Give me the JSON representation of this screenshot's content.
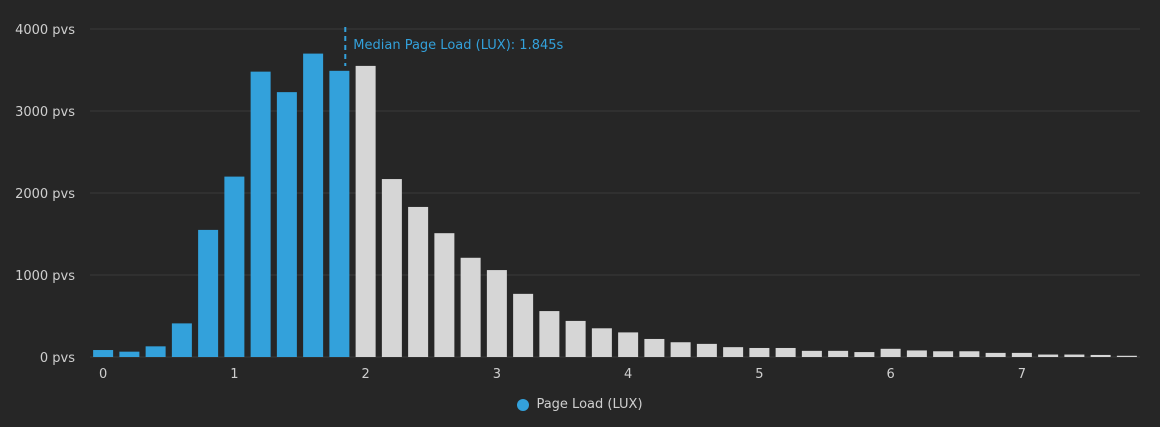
{
  "chart_data": {
    "type": "bar",
    "x": [
      0.0,
      0.2,
      0.4,
      0.6,
      0.8,
      1.0,
      1.2,
      1.4,
      1.6,
      1.8,
      2.0,
      2.2,
      2.4,
      2.6,
      2.8,
      3.0,
      3.2,
      3.4,
      3.6,
      3.8,
      4.0,
      4.2,
      4.4,
      4.6,
      4.8,
      5.0,
      5.2,
      5.4,
      5.6,
      5.8,
      6.0,
      6.2,
      6.4,
      6.6,
      6.8,
      7.0,
      7.2,
      7.4,
      7.6,
      7.8
    ],
    "values": [
      85,
      65,
      130,
      410,
      1550,
      2200,
      3480,
      3230,
      3700,
      3490,
      3550,
      2170,
      1830,
      1510,
      1210,
      1060,
      770,
      560,
      440,
      350,
      300,
      220,
      180,
      160,
      120,
      110,
      110,
      75,
      75,
      60,
      100,
      80,
      70,
      70,
      50,
      50,
      30,
      30,
      25,
      15
    ],
    "highlight_count": 10,
    "xlim": [
      -0.1,
      7.9
    ],
    "ylim": [
      0,
      4000
    ],
    "x_ticks": [
      0,
      1,
      2,
      3,
      4,
      5,
      6,
      7
    ],
    "y_ticks": [
      0,
      1000,
      2000,
      3000,
      4000
    ],
    "y_tick_labels": [
      "0 pvs",
      "1000 pvs",
      "2000 pvs",
      "3000 pvs",
      "4000 pvs"
    ],
    "median": 1.845,
    "median_label": "Median Page Load (LUX): 1.845s",
    "series": [
      {
        "name": "Page Load (LUX)",
        "color": "#33a1db"
      }
    ],
    "colors": {
      "highlight": "#33a1db",
      "rest": "#d6d6d6",
      "background": "#262626",
      "grid": "#3a3a3a",
      "text": "#cfcfcf"
    },
    "grid": true,
    "legend_position": "bottom-center"
  }
}
